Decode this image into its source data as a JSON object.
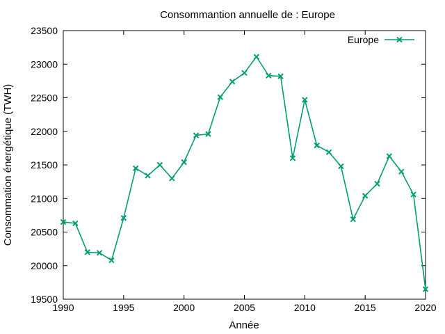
{
  "chart_data": {
    "type": "line",
    "title": "Consommantion annuelle de : Europe",
    "xlabel": "Année",
    "ylabel": "Consommation énergétique (TWH)",
    "xlim": [
      1990,
      2020
    ],
    "ylim": [
      19500,
      23500
    ],
    "xticks": [
      "1990",
      "1995",
      "2000",
      "2005",
      "2010",
      "2015",
      "2020"
    ],
    "yticks": [
      "19500",
      "20000",
      "20500",
      "21000",
      "21500",
      "22000",
      "22500",
      "23000",
      "23500"
    ],
    "legend_position": "top-right",
    "grid": false,
    "series": [
      {
        "name": "Europe",
        "color": "#009e73",
        "marker": "x",
        "x": [
          1990,
          1991,
          1992,
          1993,
          1994,
          1995,
          1996,
          1997,
          1998,
          1999,
          2000,
          2001,
          2002,
          2003,
          2004,
          2005,
          2006,
          2007,
          2008,
          2009,
          2010,
          2011,
          2012,
          2013,
          2014,
          2015,
          2016,
          2017,
          2018,
          2019,
          2020
        ],
        "values": [
          20650,
          20630,
          20200,
          20190,
          20080,
          20710,
          21450,
          21340,
          21500,
          21300,
          21540,
          21940,
          21960,
          22510,
          22740,
          22870,
          23110,
          22830,
          22820,
          21600,
          22470,
          21790,
          21690,
          21480,
          20690,
          21040,
          21220,
          21630,
          21400,
          21060,
          19650
        ]
      }
    ]
  }
}
